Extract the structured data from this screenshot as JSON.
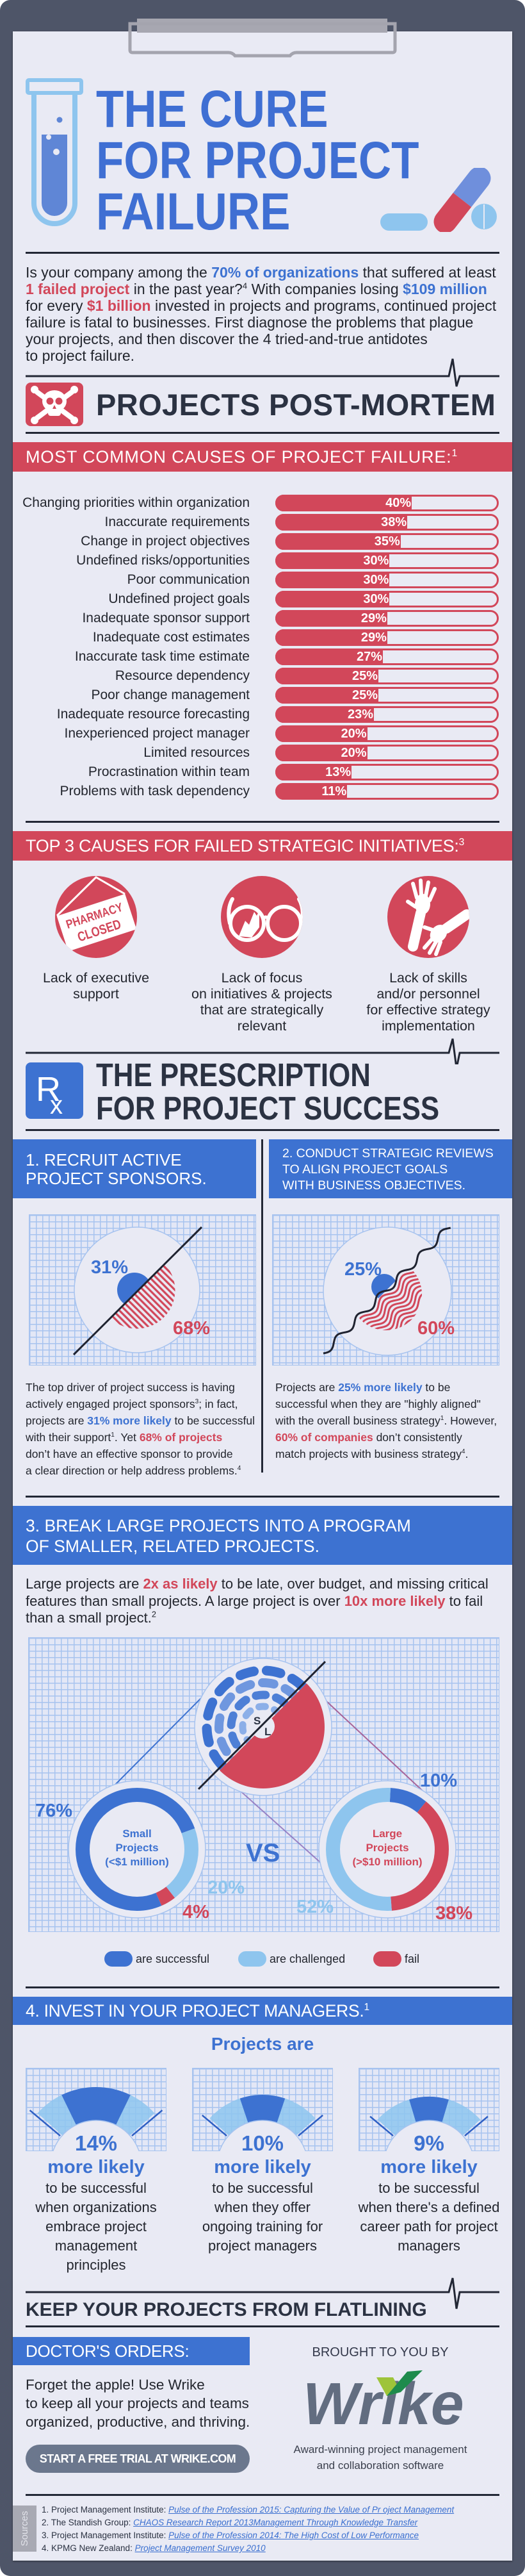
{
  "colors": {
    "blue": "#3d72d1",
    "light_blue": "#8ec5ee",
    "red": "#d2475a",
    "dark": "#2b3242",
    "paper": "#e9eaf4",
    "board": "#4e5568",
    "wrike_gray": "#626d80",
    "wrike_green_light": "#9ec43a",
    "wrike_green_dark": "#1e8b4c"
  },
  "icons": [
    "clipboard-clip-icon",
    "test-tube-icon",
    "pills-icon",
    "skull-crossbones-icon",
    "pharmacy-closed-icon",
    "cracked-glasses-icon",
    "reaching-hands-icon",
    "rx-icon",
    "heartbeat-icon",
    "wrike-logo"
  ],
  "header": {
    "title_lines": [
      "THE CURE",
      "FOR PROJECT",
      "FAILURE"
    ]
  },
  "intro": {
    "lines": [
      [
        "Is your company among the ",
        "70% of organizations",
        " that suffered at least"
      ],
      [
        "1 failed project",
        " in the past year?",
        "4",
        " With companies losing ",
        "$109 million"
      ],
      [
        "for every ",
        "$1 billion",
        " invested in projects and programs, continued project"
      ],
      [
        "failure is fatal to businesses. First diagnose the problems that plague"
      ],
      [
        "your projects, and then discover the 4 tried-and-true antidotes"
      ],
      [
        "to project failure."
      ]
    ]
  },
  "post_mortem": {
    "heading": "PROJECTS POST-MORTEM",
    "causes_header": {
      "text": "MOST COMMON CAUSES OF PROJECT FAILURE:",
      "sup": "1"
    },
    "strategic_header": {
      "text": "TOP 3 CAUSES FOR FAILED STRATEGIC INITIATIVES:",
      "sup": "3"
    },
    "strategic_causes": [
      {
        "sign": [
          "PHARMACY",
          "CLOSED"
        ],
        "caption": [
          "Lack of executive",
          "support"
        ]
      },
      {
        "caption": [
          "Lack of focus",
          "on initiatives & projects",
          "that are strategically",
          "relevant"
        ]
      },
      {
        "caption": [
          "Lack of skills",
          "and/or personnel",
          "for effective strategy",
          "implementation"
        ]
      }
    ]
  },
  "prescription": {
    "rx_glyphs": [
      "R",
      "x"
    ],
    "heading": [
      "THE PRESCRIPTION",
      "FOR PROJECT SUCCESS"
    ],
    "step1": {
      "header": [
        "1. RECRUIT ACTIVE",
        "PROJECT SPONSORS."
      ],
      "body": [
        [
          "The top driver of project success is having"
        ],
        [
          "actively engaged project sponsors",
          "3",
          "; in fact,"
        ],
        [
          "projects are ",
          "31% more likely",
          " to be successful"
        ],
        [
          "with their support",
          "1",
          ". Yet ",
          "68% of projects"
        ],
        [
          "don’t have an effective sponsor to provide"
        ],
        [
          "a clear direction or help address problems.",
          "4"
        ]
      ]
    },
    "step2": {
      "header": [
        "2. CONDUCT STRATEGIC REVIEWS",
        "TO ALIGN PROJECT GOALS",
        "WITH BUSINESS OBJECTIVES."
      ],
      "body": [
        [
          "Projects are ",
          "25% more likely",
          " to be"
        ],
        [
          "successful when they are \"highly aligned\""
        ],
        [
          "with the overall business strategy",
          "1",
          ".  However,"
        ],
        [
          "60% of companies",
          " don’t consistently"
        ],
        [
          "match projects with business strategy",
          "4",
          "."
        ]
      ]
    },
    "step3": {
      "header": [
        "3. BREAK LARGE PROJECTS INTO A PROGRAM",
        "OF SMALLER, RELATED PROJECTS."
      ],
      "body": [
        [
          "Large projects are ",
          "2x as likely",
          " to be late, over budget, and missing critical"
        ],
        [
          "features than small projects. A large project is over ",
          "10x more likely",
          " to fail"
        ],
        [
          "than a small project.",
          "2"
        ]
      ],
      "zoom_labels": {
        "small": "S",
        "large": "L"
      },
      "small_title": [
        "Small",
        "Projects",
        "(<$1 million)"
      ],
      "large_title": [
        "Large",
        "Projects",
        "(>$10 million)"
      ],
      "vs": "VS",
      "legend": [
        "are successful",
        "are challenged",
        "fail"
      ]
    },
    "step4": {
      "header": {
        "text": "4. INVEST IN YOUR PROJECT MANAGERS.",
        "sup": "1"
      },
      "lead": "Projects are",
      "gauges": [
        {
          "more": "more likely",
          "desc": [
            "to be successful",
            "when organizations",
            "embrace project",
            "management",
            "principles"
          ]
        },
        {
          "more": "more likely",
          "desc": [
            "to be successful",
            "when they offer",
            "ongoing training for",
            "project managers"
          ]
        },
        {
          "more": "more likely",
          "desc": [
            "to be successful",
            "when there's a defined",
            "career path for project",
            "managers"
          ]
        }
      ]
    }
  },
  "closing": {
    "heading": "KEEP YOUR PROJECTS FROM FLATLINING",
    "orders_title": "DOCTOR'S ORDERS:",
    "orders_body": [
      "Forget the apple! Use Wrike",
      "to keep all your projects and teams",
      "organized, productive, and thriving."
    ],
    "cta": "START A FREE TRIAL AT WRIKE.COM",
    "brought_by": "BROUGHT TO YOU BY",
    "brand": "Wrike",
    "tagline": [
      "Award-winning project management",
      "and collaboration software"
    ]
  },
  "sources": {
    "tag": "Sources",
    "items": [
      {
        "num": "1. ",
        "org": "Project Management Institute: ",
        "link": "Pulse of the Profession 2015: Capturing the Value of Pr oject Management"
      },
      {
        "num": "2. ",
        "org": "The Standish Group: ",
        "link": "CHAOS Research Report 2013Management Through Knowledge Transfer"
      },
      {
        "num": "3. ",
        "org": "Project Management Institute: ",
        "link": "Pulse of the Profession 2014: The High Cost of Low Performance"
      },
      {
        "num": "4. ",
        "org": "KPMG New Zealand: ",
        "link": "Project Management Survey 2010"
      }
    ]
  },
  "chart_data": [
    {
      "type": "bar",
      "orientation": "horizontal",
      "title": "MOST COMMON CAUSES OF PROJECT FAILURE",
      "categories": [
        "Changing priorities within organization",
        "Inaccurate requirements",
        "Change in project objectives",
        "Undefined risks/opportunities",
        "Poor communication",
        "Undefined project goals",
        "Inadequate sponsor support",
        "Inadequate cost estimates",
        "Inaccurate task time estimate",
        "Resource dependency",
        "Poor change management",
        "Inadequate resource forecasting",
        "Inexperienced project manager",
        "Limited resources",
        "Procrastination within team",
        "Problems with task dependency"
      ],
      "values": [
        40,
        38,
        35,
        30,
        30,
        30,
        29,
        29,
        27,
        25,
        25,
        23,
        20,
        20,
        13,
        11
      ],
      "value_labels": [
        "40%",
        "38%",
        "35%",
        "30%",
        "30%",
        "30%",
        "29%",
        "29%",
        "27%",
        "25%",
        "25%",
        "23%",
        "20%",
        "20%",
        "13%",
        "11%"
      ],
      "xlabel": "",
      "ylabel": "",
      "unit": "%",
      "grid": false
    },
    {
      "type": "pie",
      "title": "Recruit active project sponsors",
      "categories": [
        "More likely to be successful with active sponsor support",
        "Projects without an effective sponsor"
      ],
      "values": [
        31,
        68
      ],
      "value_labels": [
        "31%",
        "68%"
      ]
    },
    {
      "type": "pie",
      "title": "Align project goals with business objectives",
      "categories": [
        "More likely to be successful when highly aligned",
        "Companies that don't consistently match projects with business strategy"
      ],
      "values": [
        25,
        60
      ],
      "value_labels": [
        "25%",
        "60%"
      ]
    },
    {
      "type": "pie",
      "title": "Small Projects (<$1 million)",
      "categories": [
        "are successful",
        "are challenged",
        "fail"
      ],
      "values": [
        76,
        20,
        4
      ],
      "value_labels": [
        "76%",
        "20%",
        "4%"
      ]
    },
    {
      "type": "pie",
      "title": "Large Projects (>$10 million)",
      "categories": [
        "are successful",
        "are challenged",
        "fail"
      ],
      "values": [
        10,
        52,
        38
      ],
      "value_labels": [
        "10%",
        "52%",
        "38%"
      ]
    },
    {
      "type": "bar",
      "title": "Projects are ... more likely to be successful",
      "categories": [
        "when organizations embrace project management principles",
        "when they offer ongoing training for project managers",
        "when there's a defined career path for project managers"
      ],
      "values": [
        14,
        10,
        9
      ],
      "value_labels": [
        "14%",
        "10%",
        "9%"
      ]
    }
  ]
}
